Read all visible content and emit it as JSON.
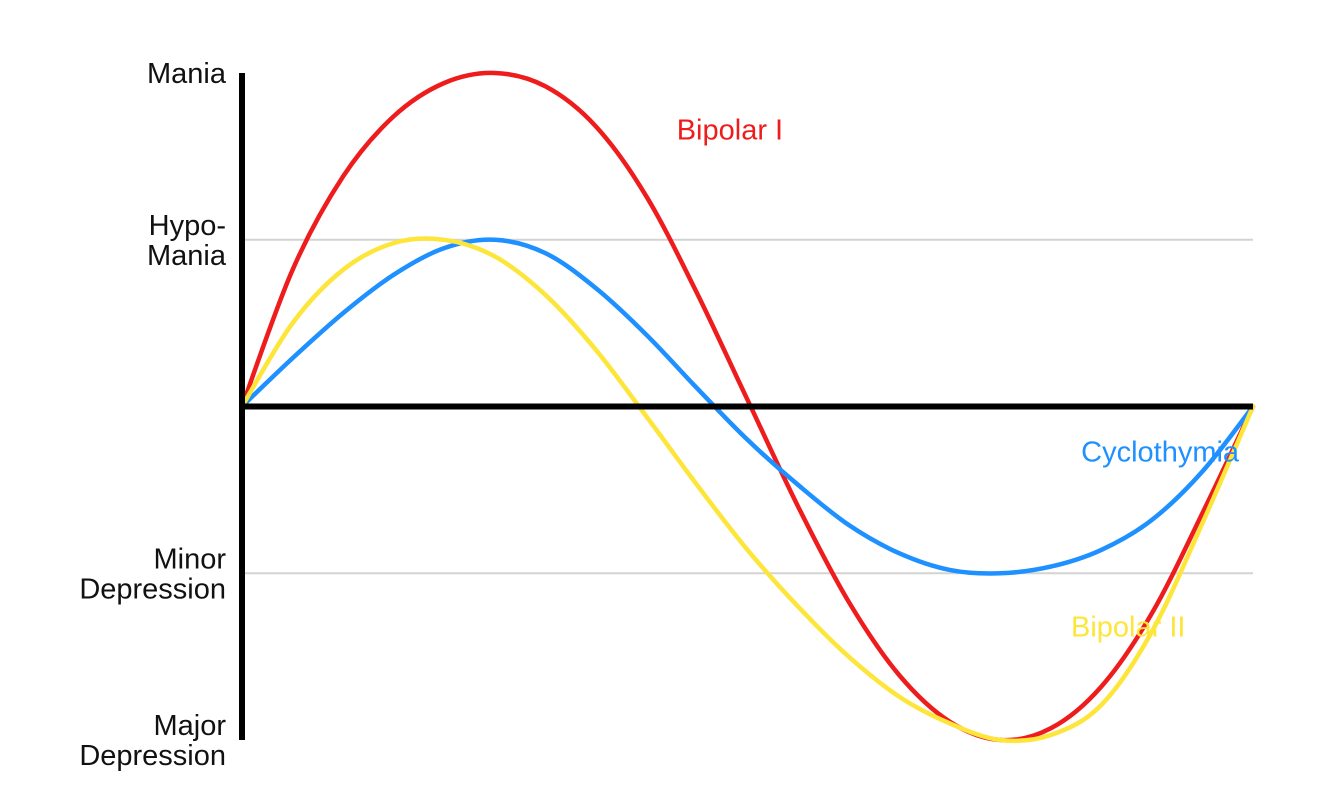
{
  "chart_data": {
    "type": "line",
    "title": "",
    "xlabel": "",
    "ylabel": "",
    "ylim": [
      -2,
      2
    ],
    "y_ticks": [
      {
        "value": 2,
        "lines": [
          "Mania"
        ]
      },
      {
        "value": 1,
        "lines": [
          "Hypo-",
          "Mania"
        ]
      },
      {
        "value": -1,
        "lines": [
          "Minor",
          "Depression"
        ]
      },
      {
        "value": -2,
        "lines": [
          "Major",
          "Depression"
        ]
      }
    ],
    "reference_lines": [
      1,
      -1
    ],
    "x_axis_at": 0,
    "series": [
      {
        "name": "Bipolar I",
        "color": "#ee1c1c",
        "x": [
          0,
          0.05,
          0.1,
          0.15,
          0.2,
          0.25,
          0.3,
          0.35,
          0.4,
          0.45,
          0.5,
          0.55,
          0.6,
          0.65,
          0.7,
          0.75,
          0.8,
          0.85,
          0.9,
          0.95,
          1
        ],
        "y": [
          0,
          0.82,
          1.38,
          1.74,
          1.94,
          2.0,
          1.92,
          1.68,
          1.26,
          0.68,
          0.04,
          -0.6,
          -1.17,
          -1.61,
          -1.89,
          -2.0,
          -1.93,
          -1.68,
          -1.24,
          -0.64,
          0
        ]
      },
      {
        "name": "Bipolar II",
        "color": "#fde53a",
        "x": [
          0,
          0.05,
          0.1,
          0.15,
          0.2,
          0.25,
          0.3,
          0.35,
          0.4,
          0.45,
          0.5,
          0.55,
          0.6,
          0.65,
          0.7,
          0.75,
          0.8,
          0.85,
          0.9,
          0.95,
          1
        ],
        "y": [
          0,
          0.5,
          0.82,
          0.98,
          1.0,
          0.9,
          0.67,
          0.34,
          -0.06,
          -0.47,
          -0.86,
          -1.2,
          -1.5,
          -1.74,
          -1.9,
          -2.0,
          -1.97,
          -1.79,
          -1.35,
          -0.7,
          0
        ]
      },
      {
        "name": "Cyclothymia",
        "color": "#1e90ff",
        "x": [
          0,
          0.05,
          0.1,
          0.15,
          0.2,
          0.25,
          0.3,
          0.35,
          0.4,
          0.45,
          0.5,
          0.55,
          0.6,
          0.65,
          0.7,
          0.75,
          0.8,
          0.85,
          0.9,
          0.95,
          1
        ],
        "y": [
          0,
          0.29,
          0.56,
          0.79,
          0.95,
          1.0,
          0.92,
          0.71,
          0.43,
          0.11,
          -0.2,
          -0.47,
          -0.71,
          -0.88,
          -0.98,
          -1.0,
          -0.96,
          -0.86,
          -0.68,
          -0.39,
          0
        ]
      }
    ],
    "annotations": [
      {
        "text": "Bipolar I",
        "series": "Bipolar I",
        "x": 0.43,
        "y": 1.6
      },
      {
        "text": "Cyclothymia",
        "series": "Cyclothymia",
        "x": 0.83,
        "y": -0.33
      },
      {
        "text": "Bipolar II",
        "series": "Bipolar II",
        "x": 0.82,
        "y": -1.38
      }
    ],
    "grid": false,
    "legend": "none"
  }
}
